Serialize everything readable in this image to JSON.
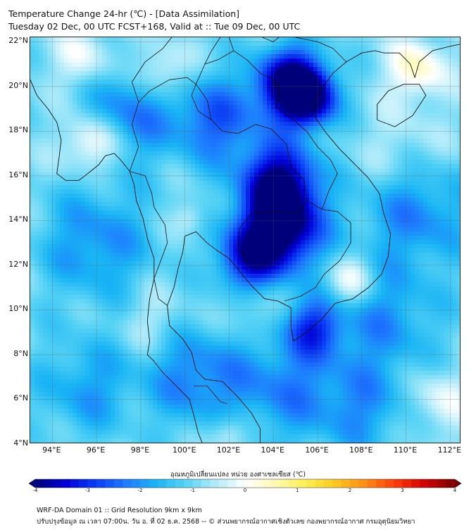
{
  "header": {
    "title_line1": "Temperature Change 24-hr (℃) - [Data Assimilation]",
    "title_line2": "Tuesday 02 Dec, 00 UTC FCST+168, Valid at :: Tue 09 Dec, 00 UTC"
  },
  "map": {
    "lat_range": [
      4,
      22.2
    ],
    "lon_range": [
      93,
      112.5
    ],
    "lat_labels": [
      "22°N",
      "20°N",
      "18°N",
      "16°N",
      "14°N",
      "12°N",
      "10°N",
      "8°N",
      "6°N",
      "4°N"
    ],
    "lat_values": [
      22,
      20,
      18,
      16,
      14,
      12,
      10,
      8,
      6,
      4
    ],
    "lon_labels": [
      "94°E",
      "96°E",
      "98°E",
      "100°E",
      "102°E",
      "104°E",
      "106°E",
      "108°E",
      "110°E",
      "112°E"
    ],
    "lon_values": [
      94,
      96,
      98,
      100,
      102,
      104,
      106,
      108,
      110,
      112
    ],
    "field_blobs": [
      {
        "lon": 104.3,
        "lat": 13.6,
        "value": -3.5,
        "spread": 1.3
      },
      {
        "lon": 104.3,
        "lat": 15.8,
        "value": -2.8,
        "spread": 1.2
      },
      {
        "lon": 104.8,
        "lat": 20.2,
        "value": -3.2,
        "spread": 1.1
      },
      {
        "lon": 105.6,
        "lat": 19.4,
        "value": -2.6,
        "spread": 0.9
      },
      {
        "lon": 102.8,
        "lat": 12.2,
        "value": -2.0,
        "spread": 1.0
      },
      {
        "lon": 105.8,
        "lat": 9.2,
        "value": -1.8,
        "spread": 0.9
      },
      {
        "lon": 101.5,
        "lat": 18.5,
        "value": -1.6,
        "spread": 1.4
      },
      {
        "lon": 97.5,
        "lat": 19.0,
        "value": -1.4,
        "spread": 1.6
      },
      {
        "lon": 96.0,
        "lat": 13.0,
        "value": -1.2,
        "spread": 1.8
      },
      {
        "lon": 110.5,
        "lat": 14.5,
        "value": -1.3,
        "spread": 1.8
      },
      {
        "lon": 109.0,
        "lat": 9.5,
        "value": -1.1,
        "spread": 1.8
      },
      {
        "lon": 100.5,
        "lat": 7.0,
        "value": -1.3,
        "spread": 1.6
      },
      {
        "lon": 104.5,
        "lat": 6.5,
        "value": -1.2,
        "spread": 1.7
      },
      {
        "lon": 95.5,
        "lat": 6.5,
        "value": -1.0,
        "spread": 1.6
      },
      {
        "lon": 108.0,
        "lat": 5.5,
        "value": -1.0,
        "spread": 1.5
      },
      {
        "lon": 95.8,
        "lat": 17.5,
        "value": 1.4,
        "spread": 0.9
      },
      {
        "lon": 98.9,
        "lat": 20.6,
        "value": 1.2,
        "spread": 0.9
      },
      {
        "lon": 95.5,
        "lat": 21.2,
        "value": 0.9,
        "spread": 1.0
      },
      {
        "lon": 100.2,
        "lat": 14.1,
        "value": 0.6,
        "spread": 0.5
      },
      {
        "lon": 110.5,
        "lat": 20.8,
        "value": 1.3,
        "spread": 0.9
      },
      {
        "lon": 107.5,
        "lat": 11.3,
        "value": 1.1,
        "spread": 0.8
      },
      {
        "lon": 110.0,
        "lat": 17.0,
        "value": 0.6,
        "spread": 1.4
      },
      {
        "lon": 111.5,
        "lat": 6.0,
        "value": 0.8,
        "spread": 1.0
      },
      {
        "lon": 102.0,
        "lat": 4.5,
        "value": 0.9,
        "spread": 0.6
      },
      {
        "lon": 98.5,
        "lat": 9.5,
        "value": 0.5,
        "spread": 1.0
      },
      {
        "lon": 103.0,
        "lat": 10.0,
        "value": 0.5,
        "spread": 0.8
      }
    ],
    "coastlines": [
      [
        [
          93.0,
          20.3
        ],
        [
          93.3,
          19.6
        ],
        [
          93.8,
          19.0
        ],
        [
          94.2,
          18.4
        ],
        [
          94.4,
          17.6
        ],
        [
          94.3,
          16.8
        ],
        [
          94.2,
          16.1
        ],
        [
          94.6,
          15.8
        ],
        [
          95.2,
          15.8
        ],
        [
          95.6,
          16.1
        ],
        [
          96.1,
          16.5
        ],
        [
          96.4,
          16.9
        ],
        [
          96.8,
          17.0
        ],
        [
          97.1,
          16.7
        ],
        [
          97.5,
          16.2
        ],
        [
          97.7,
          15.6
        ],
        [
          97.8,
          14.9
        ],
        [
          98.1,
          14.1
        ],
        [
          98.3,
          13.2
        ],
        [
          98.6,
          12.3
        ],
        [
          98.6,
          11.4
        ],
        [
          98.4,
          10.5
        ],
        [
          98.3,
          9.5
        ],
        [
          98.4,
          8.6
        ],
        [
          98.3,
          8.0
        ],
        [
          98.6,
          7.7
        ],
        [
          99.0,
          7.2
        ],
        [
          99.7,
          6.5
        ],
        [
          100.2,
          6.0
        ],
        [
          100.4,
          5.3
        ],
        [
          100.6,
          4.5
        ],
        [
          100.8,
          4.0
        ]
      ],
      [
        [
          103.4,
          4.0
        ],
        [
          103.4,
          4.7
        ],
        [
          103.0,
          5.4
        ],
        [
          102.4,
          6.1
        ],
        [
          101.7,
          6.8
        ],
        [
          100.9,
          6.9
        ],
        [
          100.5,
          7.3
        ],
        [
          100.3,
          8.1
        ],
        [
          99.9,
          8.7
        ],
        [
          99.3,
          9.3
        ],
        [
          99.2,
          10.2
        ],
        [
          99.5,
          11.0
        ],
        [
          99.7,
          11.9
        ],
        [
          99.9,
          12.6
        ],
        [
          100.0,
          13.3
        ],
        [
          100.5,
          13.5
        ],
        [
          101.0,
          13.0
        ],
        [
          101.4,
          12.7
        ],
        [
          102.0,
          12.3
        ],
        [
          102.5,
          11.7
        ],
        [
          103.0,
          11.1
        ],
        [
          103.6,
          10.5
        ],
        [
          104.2,
          10.4
        ],
        [
          104.8,
          10.1
        ],
        [
          104.8,
          9.2
        ],
        [
          104.9,
          8.6
        ],
        [
          105.5,
          9.0
        ],
        [
          106.2,
          9.6
        ],
        [
          106.8,
          10.3
        ],
        [
          107.6,
          10.5
        ],
        [
          108.3,
          11.0
        ],
        [
          108.9,
          11.6
        ],
        [
          109.2,
          12.4
        ],
        [
          109.3,
          13.4
        ],
        [
          109.0,
          14.3
        ],
        [
          108.8,
          15.2
        ],
        [
          108.3,
          15.9
        ],
        [
          107.6,
          16.6
        ],
        [
          107.0,
          17.2
        ],
        [
          106.4,
          17.9
        ],
        [
          105.9,
          18.6
        ],
        [
          105.8,
          19.3
        ],
        [
          106.2,
          19.9
        ],
        [
          106.7,
          20.6
        ],
        [
          107.3,
          21.1
        ],
        [
          108.0,
          21.5
        ],
        [
          108.6,
          21.6
        ],
        [
          109.0,
          21.5
        ],
        [
          109.7,
          21.5
        ],
        [
          110.2,
          21.0
        ],
        [
          110.4,
          20.4
        ],
        [
          110.6,
          21.1
        ],
        [
          111.2,
          21.6
        ],
        [
          112.0,
          21.8
        ],
        [
          112.5,
          21.9
        ]
      ],
      [
        [
          108.7,
          18.5
        ],
        [
          109.5,
          18.2
        ],
        [
          110.3,
          18.7
        ],
        [
          110.9,
          19.6
        ],
        [
          110.6,
          20.1
        ],
        [
          109.9,
          20.1
        ],
        [
          109.2,
          19.8
        ],
        [
          108.7,
          19.2
        ],
        [
          108.7,
          18.5
        ]
      ]
    ],
    "borders": [
      [
        [
          97.5,
          16.2
        ],
        [
          97.9,
          17.3
        ],
        [
          97.6,
          18.3
        ],
        [
          97.9,
          19.3
        ],
        [
          98.4,
          19.8
        ],
        [
          99.3,
          20.3
        ],
        [
          100.1,
          20.4
        ],
        [
          100.5,
          20.1
        ],
        [
          101.0,
          19.4
        ],
        [
          101.2,
          18.5
        ],
        [
          101.7,
          18.0
        ],
        [
          102.4,
          17.9
        ],
        [
          103.2,
          18.3
        ],
        [
          103.9,
          18.1
        ],
        [
          104.6,
          17.4
        ],
        [
          104.8,
          16.4
        ],
        [
          105.4,
          15.8
        ],
        [
          105.5,
          14.9
        ],
        [
          105.1,
          14.3
        ],
        [
          104.1,
          14.4
        ],
        [
          103.0,
          14.3
        ],
        [
          102.5,
          13.7
        ],
        [
          102.4,
          12.9
        ],
        [
          102.8,
          12.1
        ]
      ],
      [
        [
          105.5,
          14.9
        ],
        [
          106.2,
          14.5
        ],
        [
          106.9,
          14.4
        ],
        [
          107.5,
          13.9
        ],
        [
          107.5,
          13.0
        ],
        [
          107.0,
          12.2
        ],
        [
          106.3,
          11.6
        ],
        [
          105.9,
          11.0
        ],
        [
          105.2,
          10.6
        ],
        [
          104.5,
          10.4
        ]
      ],
      [
        [
          106.2,
          14.5
        ],
        [
          106.5,
          15.3
        ],
        [
          106.9,
          16.1
        ],
        [
          106.6,
          16.7
        ],
        [
          106.0,
          17.3
        ],
        [
          105.5,
          18.0
        ],
        [
          104.8,
          18.6
        ],
        [
          104.1,
          19.1
        ],
        [
          104.3,
          19.8
        ],
        [
          104.0,
          20.3
        ],
        [
          103.4,
          20.6
        ],
        [
          102.8,
          21.2
        ],
        [
          102.2,
          21.6
        ],
        [
          102.0,
          22.2
        ]
      ],
      [
        [
          101.2,
          18.5
        ],
        [
          100.6,
          18.9
        ],
        [
          100.3,
          19.6
        ],
        [
          100.5,
          20.1
        ],
        [
          100.9,
          21.0
        ],
        [
          101.2,
          21.6
        ],
        [
          101.6,
          22.2
        ]
      ],
      [
        [
          97.9,
          19.3
        ],
        [
          97.6,
          20.2
        ],
        [
          98.2,
          21.1
        ],
        [
          99.0,
          21.7
        ],
        [
          99.4,
          22.2
        ]
      ],
      [
        [
          100.9,
          21.0
        ],
        [
          101.5,
          21.2
        ],
        [
          102.2,
          21.6
        ]
      ],
      [
        [
          103.5,
          22.2
        ],
        [
          104.0,
          22.0
        ],
        [
          104.5,
          22.4
        ]
      ],
      [
        [
          105.0,
          22.2
        ],
        [
          106.0,
          22.0
        ],
        [
          106.7,
          21.7
        ],
        [
          107.3,
          21.1
        ]
      ],
      [
        [
          99.2,
          10.2
        ],
        [
          98.8,
          10.5
        ],
        [
          98.6,
          11.4
        ],
        [
          98.9,
          12.2
        ],
        [
          99.2,
          13.0
        ],
        [
          99.1,
          13.8
        ],
        [
          98.6,
          14.6
        ],
        [
          98.5,
          15.2
        ],
        [
          98.2,
          16.0
        ],
        [
          97.5,
          16.2
        ]
      ],
      [
        [
          100.4,
          6.6
        ],
        [
          101.0,
          6.6
        ],
        [
          101.6,
          5.9
        ],
        [
          101.9,
          5.8
        ]
      ]
    ]
  },
  "colorbar": {
    "title": "อุณหภูมิเปลี่ยนแปลง หน่วย องศาเซลเซียส (℃)",
    "min": -4,
    "max": 4,
    "tick_labels": [
      "-4",
      "-3",
      "-2",
      "-1",
      "0",
      "1",
      "2",
      "3",
      "4"
    ],
    "tick_values": [
      -4,
      -3,
      -2,
      -1,
      0,
      1,
      2,
      3,
      4
    ],
    "colors": [
      "#00007a",
      "#0000d8",
      "#0a3cf5",
      "#1e78ff",
      "#19b4f5",
      "#55d2f5",
      "#b0ebfa",
      "#ffffff",
      "#fffab4",
      "#fff050",
      "#ffc81e",
      "#ff8c14",
      "#ff3c0a",
      "#d20000",
      "#7a0000"
    ]
  },
  "footer": {
    "line1": "WRF-DA Domain 01 :: Grid Resolution 9km x 9km",
    "line2": "ปรับปรุงข้อมูล ณ เวลา 07:00น. วัน อ. ที่ 02 ธ.ค. 2568 -- © ส่วนพยากรณ์อากาศเชิงตัวเลข กองพยากรณ์อากาศ กรมอุตุนิยมวิทยา"
  }
}
